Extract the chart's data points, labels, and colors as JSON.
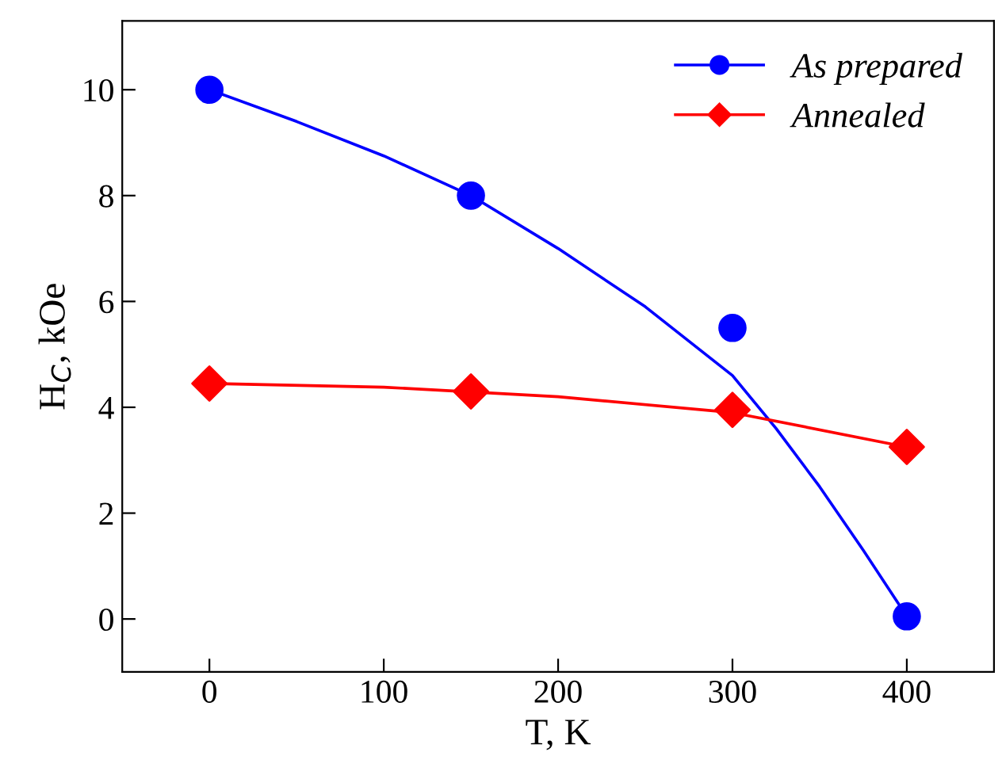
{
  "chart_data": {
    "type": "scatter",
    "xlabel": "T, K",
    "ylabel": "H$_{C}$, kOe",
    "xlim": [
      -50,
      450
    ],
    "ylim": [
      -1,
      11.3
    ],
    "xticks": [
      0,
      100,
      200,
      300,
      400
    ],
    "yticks": [
      0,
      2,
      4,
      6,
      8,
      10
    ],
    "grid": false,
    "legend": "top right",
    "series": [
      {
        "name": "As prepared",
        "marker": "circle",
        "color": "#0000ff",
        "x": [
          0,
          150,
          300,
          400
        ],
        "values": [
          10,
          8,
          5.5,
          0.05
        ]
      },
      {
        "name": "Annealed",
        "marker": "diamond",
        "color": "#ff0000",
        "x": [
          0,
          150,
          300,
          400
        ],
        "values": [
          4.45,
          4.3,
          3.95,
          3.25
        ]
      },
      {
        "type": "line",
        "marker": "none",
        "color": "#0000ff",
        "x": [
          0,
          50,
          100,
          150,
          200,
          250,
          300,
          325,
          350,
          375,
          400
        ],
        "values": [
          10,
          9.4,
          8.75,
          8.0,
          7.0,
          5.9,
          4.6,
          3.6,
          2.5,
          1.3,
          0.05
        ]
      },
      {
        "type": "line",
        "marker": "none",
        "color": "#ff0000",
        "x": [
          0,
          100,
          200,
          300,
          400
        ],
        "values": [
          4.45,
          4.38,
          4.2,
          3.9,
          3.25
        ]
      }
    ]
  }
}
